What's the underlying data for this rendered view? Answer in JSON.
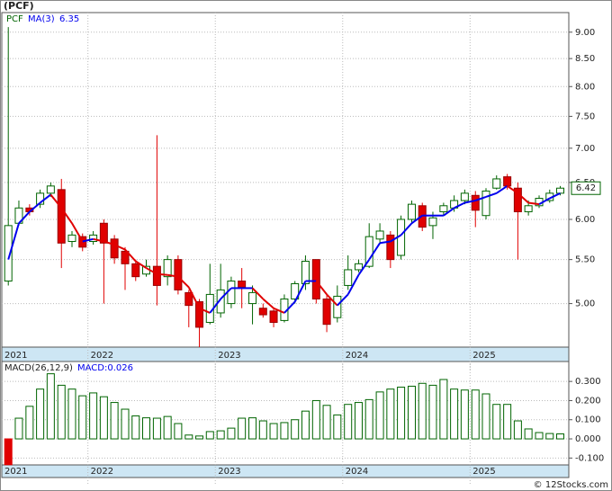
{
  "header": {
    "title": "(PCF)"
  },
  "footer": "© 12Stocks.com",
  "chart_data": [
    {
      "type": "candlestick",
      "name": "PCF",
      "log_scale": true,
      "grid": true,
      "up_color": "#006400",
      "down_color": "#e00000",
      "last_price": 6.42,
      "x": [
        2021.375,
        2021.458,
        2021.542,
        2021.625,
        2021.708,
        2021.792,
        2021.875,
        2021.958,
        2022.042,
        2022.125,
        2022.208,
        2022.292,
        2022.375,
        2022.458,
        2022.542,
        2022.625,
        2022.708,
        2022.792,
        2022.875,
        2022.958,
        2023.042,
        2023.125,
        2023.208,
        2023.292,
        2023.375,
        2023.458,
        2023.542,
        2023.625,
        2023.708,
        2023.792,
        2023.875,
        2023.958,
        2024.042,
        2024.125,
        2024.208,
        2024.292,
        2024.375,
        2024.458,
        2024.542,
        2024.625,
        2024.708,
        2024.792,
        2024.875,
        2024.958,
        2025.042,
        2025.125,
        2025.208,
        2025.292,
        2025.375,
        2025.458,
        2025.542,
        2025.625,
        2025.708
      ],
      "open": [
        5.25,
        5.95,
        6.15,
        6.2,
        6.35,
        6.4,
        5.72,
        5.78,
        5.72,
        5.95,
        5.75,
        5.6,
        5.45,
        5.33,
        5.42,
        5.3,
        5.5,
        5.12,
        5.02,
        4.8,
        4.9,
        5.0,
        5.25,
        5.0,
        4.95,
        4.92,
        4.82,
        5.05,
        5.22,
        5.5,
        5.05,
        4.85,
        5.2,
        5.38,
        5.42,
        5.75,
        5.8,
        5.55,
        6.0,
        6.18,
        5.92,
        6.1,
        6.15,
        6.25,
        6.32,
        6.05,
        6.42,
        6.58,
        6.42,
        6.1,
        6.18,
        6.25,
        6.35
      ],
      "high": [
        9.1,
        6.25,
        6.2,
        6.4,
        6.5,
        6.55,
        5.85,
        5.82,
        5.85,
        6.0,
        5.8,
        5.65,
        5.5,
        5.5,
        7.2,
        5.55,
        5.55,
        5.15,
        5.05,
        5.45,
        5.45,
        5.3,
        5.4,
        5.2,
        5.0,
        4.95,
        5.1,
        5.25,
        5.55,
        5.5,
        5.1,
        5.2,
        5.55,
        5.5,
        5.95,
        5.95,
        5.85,
        6.05,
        6.25,
        6.22,
        6.1,
        6.22,
        6.32,
        6.4,
        6.38,
        6.42,
        6.6,
        6.62,
        6.5,
        6.25,
        6.32,
        6.4,
        6.45
      ],
      "low": [
        5.2,
        5.92,
        6.05,
        6.15,
        6.3,
        5.4,
        5.65,
        5.6,
        5.68,
        5.0,
        5.45,
        5.15,
        5.25,
        5.3,
        4.98,
        5.2,
        5.1,
        4.75,
        4.55,
        4.78,
        4.85,
        4.95,
        4.95,
        4.78,
        4.85,
        4.75,
        4.8,
        5.0,
        5.15,
        5.0,
        4.7,
        4.8,
        5.15,
        5.35,
        5.4,
        5.7,
        5.4,
        5.5,
        5.95,
        5.85,
        5.75,
        6.05,
        6.1,
        6.2,
        5.9,
        6.0,
        6.4,
        6.4,
        5.5,
        6.05,
        6.15,
        6.22,
        6.32
      ],
      "close": [
        5.92,
        6.15,
        6.1,
        6.35,
        6.45,
        5.7,
        5.8,
        5.65,
        5.8,
        5.7,
        5.52,
        5.45,
        5.3,
        5.42,
        5.2,
        5.5,
        5.15,
        4.98,
        4.75,
        5.1,
        5.15,
        5.25,
        5.18,
        5.12,
        4.88,
        4.8,
        5.05,
        5.22,
        5.48,
        5.05,
        4.78,
        5.08,
        5.38,
        5.45,
        5.78,
        5.85,
        5.5,
        6.0,
        6.2,
        5.9,
        6.02,
        6.18,
        6.25,
        6.35,
        6.12,
        6.38,
        6.55,
        6.45,
        6.1,
        6.18,
        6.28,
        6.35,
        6.42
      ],
      "ma": {
        "name": "MA(3)",
        "last": 6.35,
        "up_color": "#0000ee",
        "down_color": "#e00000",
        "values": [
          5.5,
          5.95,
          6.1,
          6.22,
          6.33,
          6.15,
          5.95,
          5.72,
          5.75,
          5.72,
          5.68,
          5.62,
          5.48,
          5.4,
          5.33,
          5.32,
          5.3,
          5.18,
          4.95,
          4.9,
          5.05,
          5.17,
          5.17,
          5.17,
          5.05,
          4.95,
          4.9,
          5.02,
          5.25,
          5.25,
          5.1,
          4.98,
          5.1,
          5.32,
          5.5,
          5.7,
          5.72,
          5.8,
          5.95,
          6.05,
          6.05,
          6.05,
          6.15,
          6.22,
          6.25,
          6.3,
          6.35,
          6.45,
          6.35,
          6.22,
          6.2,
          6.28,
          6.35
        ]
      },
      "xlim": [
        2021.324,
        2025.775
      ],
      "xticks": [
        2021,
        2022,
        2023,
        2024,
        2025
      ],
      "ylim": [
        4.55,
        9.39
      ],
      "yticks": [
        {
          "value": 5,
          "label": "5.00"
        },
        {
          "value": 5.5,
          "label": "5.50"
        },
        {
          "value": 6,
          "label": "6.00"
        },
        {
          "value": 6.5,
          "label": "6.50"
        },
        {
          "value": 7,
          "label": "7.00"
        },
        {
          "value": 7.5,
          "label": "7.50"
        },
        {
          "value": 8,
          "label": "8.00"
        },
        {
          "value": 8.5,
          "label": "8.50"
        },
        {
          "value": 9,
          "label": "9.00"
        }
      ]
    },
    {
      "type": "bar",
      "name": "MACD(26,12,9)",
      "current_label": "MACD:0.026",
      "grid": true,
      "color": "#006400",
      "negative_color": "#e00000",
      "values": [
        -0.135,
        0.108,
        0.17,
        0.26,
        0.34,
        0.28,
        0.26,
        0.225,
        0.24,
        0.22,
        0.19,
        0.155,
        0.12,
        0.11,
        0.108,
        0.117,
        0.08,
        0.02,
        0.015,
        0.038,
        0.042,
        0.056,
        0.108,
        0.11,
        0.094,
        0.08,
        0.085,
        0.1,
        0.145,
        0.2,
        0.175,
        0.125,
        0.18,
        0.19,
        0.205,
        0.245,
        0.26,
        0.27,
        0.275,
        0.29,
        0.28,
        0.31,
        0.26,
        0.255,
        0.255,
        0.235,
        0.18,
        0.18,
        0.094,
        0.052,
        0.033,
        0.028,
        0.026
      ],
      "ylim": [
        -0.136,
        0.404
      ],
      "yticks": [
        {
          "value": -0.1,
          "label": "-0.100"
        },
        {
          "value": 0,
          "label": "0.000"
        },
        {
          "value": 0.1,
          "label": "0.100"
        },
        {
          "value": 0.2,
          "label": "0.200"
        },
        {
          "value": 0.3,
          "label": "0.300"
        }
      ]
    }
  ]
}
